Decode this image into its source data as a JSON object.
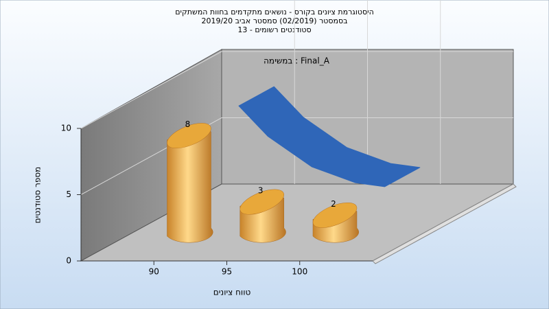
{
  "chart_data": {
    "type": "bar",
    "title": [
      "היסטוגרמת ציונים בקורס - נושאים מתקדמים בחוות המשתקים",
      "בסמסטר  (02/2019)  סמסטר אביב 2019/20",
      "סטודנטים רשומים - 13"
    ],
    "annotation": "Final_A : במשימה",
    "x_label": "טווח ציונים",
    "y_label": "מספר סטודנטים",
    "x": [
      90,
      95,
      100
    ],
    "values": [
      8,
      3,
      2
    ],
    "color": "#e8a83a",
    "curve": {
      "color": "#2f66b8",
      "x": [
        91,
        93,
        96,
        99,
        101
      ],
      "values": [
        8.8,
        6.5,
        4.2,
        3.0,
        2.7
      ]
    },
    "xlim": [
      85,
      105
    ],
    "xticks": [
      90,
      95,
      100
    ],
    "ylim": [
      0,
      10
    ],
    "yticks": [
      0,
      5,
      10
    ],
    "grid": true
  }
}
